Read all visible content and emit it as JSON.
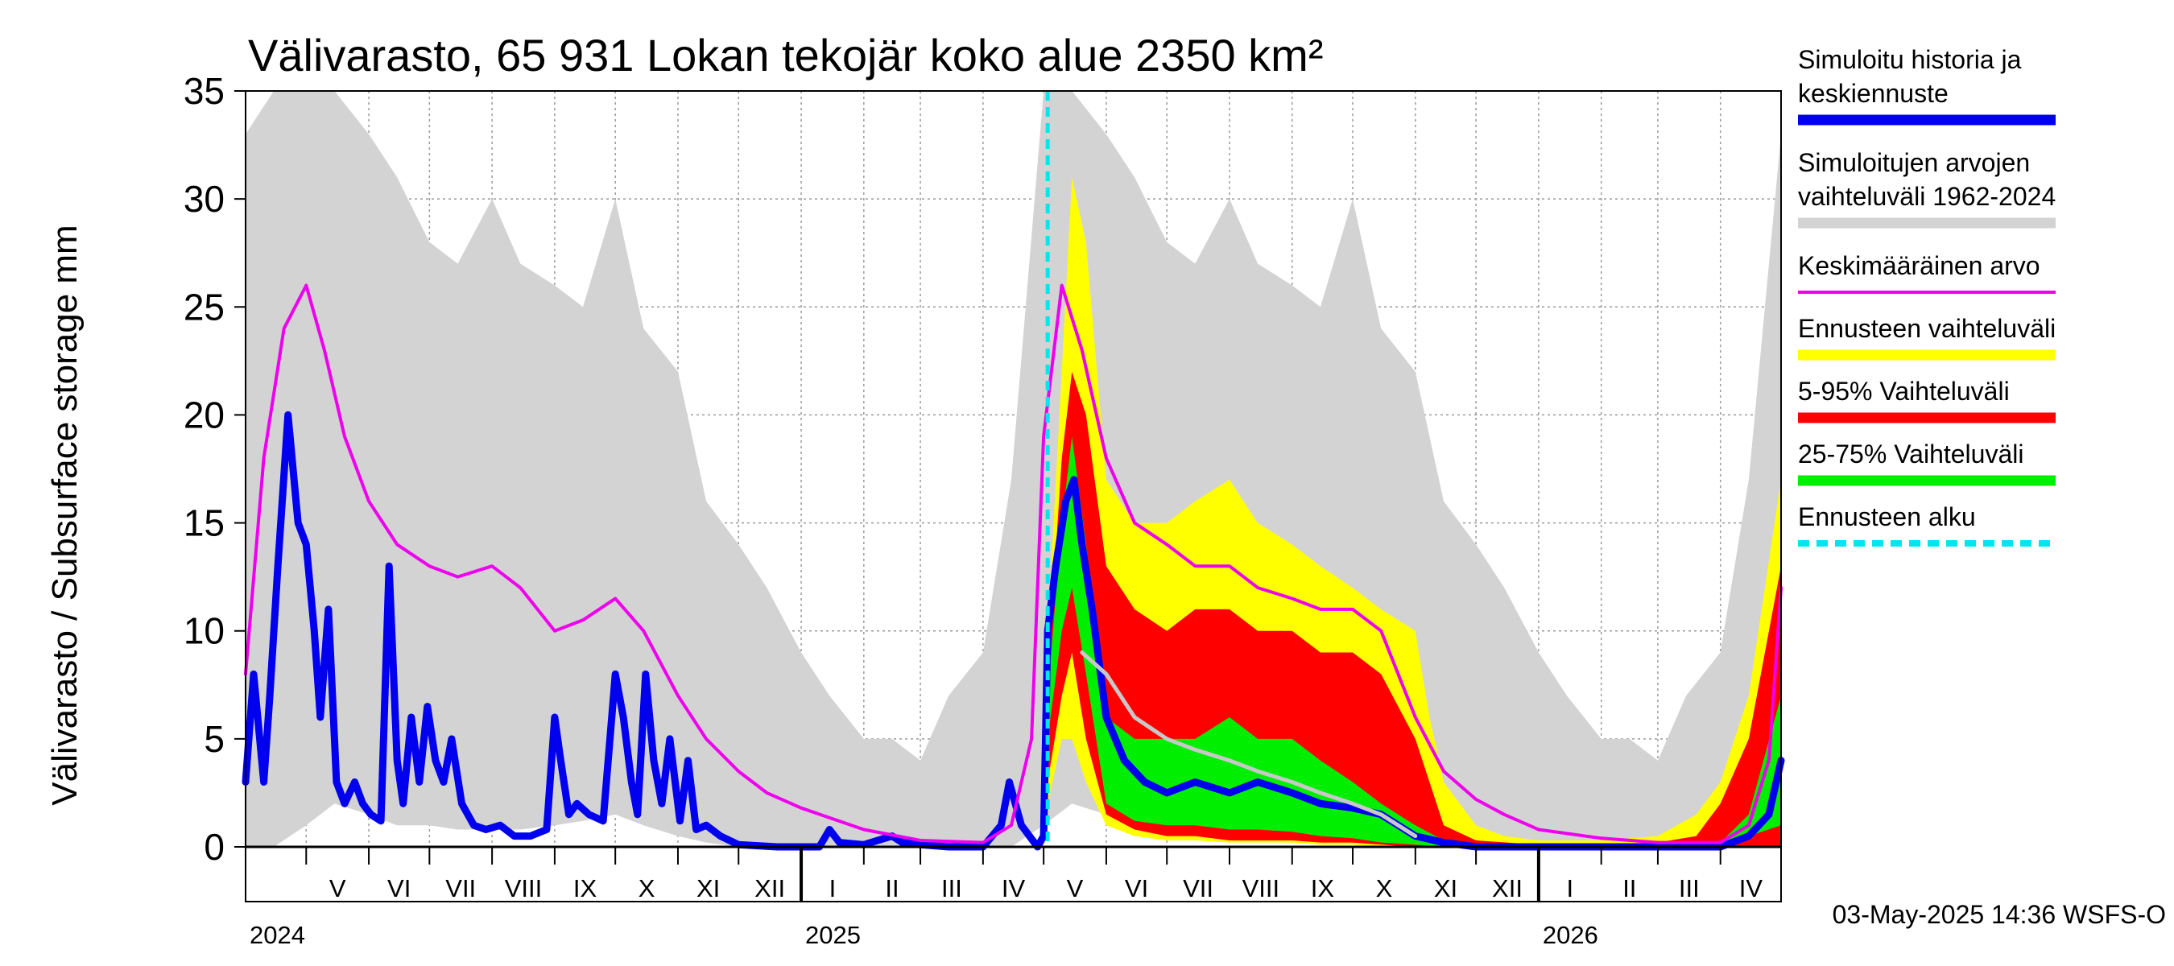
{
  "chart_data": {
    "type": "area",
    "title": "Välivarasto, 65 931 Lokan tekojär koko alue 2350 km²",
    "ylabel": "Välivarasto / Subsurface storage  mm",
    "ylim": [
      0,
      35
    ],
    "yticks": [
      "0",
      "5",
      "10",
      "15",
      "20",
      "25",
      "30",
      "35"
    ],
    "grid": true,
    "legend_position": "right",
    "x_range": [
      "2024-04-01",
      "2026-05-01"
    ],
    "month_ticks": [
      {
        "label": "V",
        "date": "2024-05-01"
      },
      {
        "label": "VI",
        "date": "2024-06-01"
      },
      {
        "label": "VII",
        "date": "2024-07-01"
      },
      {
        "label": "VIII",
        "date": "2024-08-01"
      },
      {
        "label": "IX",
        "date": "2024-09-01"
      },
      {
        "label": "X",
        "date": "2024-10-01"
      },
      {
        "label": "XI",
        "date": "2024-11-01"
      },
      {
        "label": "XII",
        "date": "2024-12-01"
      },
      {
        "label": "I",
        "date": "2025-01-01"
      },
      {
        "label": "II",
        "date": "2025-02-01"
      },
      {
        "label": "III",
        "date": "2025-03-01"
      },
      {
        "label": "IV",
        "date": "2025-04-01"
      },
      {
        "label": "V",
        "date": "2025-05-01"
      },
      {
        "label": "VI",
        "date": "2025-06-01"
      },
      {
        "label": "VII",
        "date": "2025-07-01"
      },
      {
        "label": "VIII",
        "date": "2025-08-01"
      },
      {
        "label": "IX",
        "date": "2025-09-01"
      },
      {
        "label": "X",
        "date": "2025-10-01"
      },
      {
        "label": "XI",
        "date": "2025-11-01"
      },
      {
        "label": "XII",
        "date": "2025-12-01"
      },
      {
        "label": "I",
        "date": "2026-01-01"
      },
      {
        "label": "II",
        "date": "2026-02-01"
      },
      {
        "label": "III",
        "date": "2026-03-01"
      },
      {
        "label": "IV",
        "date": "2026-04-01"
      }
    ],
    "year_labels": [
      {
        "label": "2024",
        "date": "2024-04-01"
      },
      {
        "label": "2025",
        "date": "2025-01-01"
      },
      {
        "label": "2026",
        "date": "2026-01-01"
      }
    ],
    "forecast_start": "2025-05-03",
    "colors": {
      "hist_range": "#d3d3d3",
      "forecast_range": "#ffff00",
      "p5_95": "#ff0000",
      "p25_75": "#00ee00",
      "history": "#0000ee",
      "mean": "#ee00ee",
      "median": "#c8c8c8",
      "forecast_start": "#00e5ee"
    },
    "series": [
      {
        "name": "Simuloitujen arvojen vaihteluväli 1962-2024",
        "kind": "band",
        "color": "#d3d3d3",
        "x": [
          "2024-04-01",
          "2024-04-15",
          "2024-05-01",
          "2024-05-15",
          "2024-06-01",
          "2024-06-15",
          "2024-07-01",
          "2024-07-15",
          "2024-08-01",
          "2024-08-15",
          "2024-09-01",
          "2024-09-15",
          "2024-10-01",
          "2024-10-15",
          "2024-11-01",
          "2024-11-15",
          "2024-12-01",
          "2024-12-15",
          "2025-01-01",
          "2025-01-15",
          "2025-02-01",
          "2025-02-15",
          "2025-03-01",
          "2025-03-15",
          "2025-04-01",
          "2025-04-15",
          "2025-05-01",
          "2025-05-15",
          "2025-06-01",
          "2025-06-15",
          "2025-07-01",
          "2025-07-15",
          "2025-08-01",
          "2025-08-15",
          "2025-09-01",
          "2025-09-15",
          "2025-10-01",
          "2025-10-15",
          "2025-11-01",
          "2025-11-15",
          "2025-12-01",
          "2025-12-15",
          "2026-01-01",
          "2026-01-15",
          "2026-02-01",
          "2026-02-15",
          "2026-03-01",
          "2026-03-15",
          "2026-04-01",
          "2026-04-15",
          "2026-05-01"
        ],
        "low": [
          0,
          0,
          1,
          2,
          1.5,
          1,
          1,
          0.8,
          0.8,
          0.8,
          1,
          1.2,
          1.5,
          1,
          0.5,
          0.2,
          0,
          0,
          0,
          0,
          0,
          0,
          0,
          0,
          0,
          0,
          1,
          2,
          1.5,
          1,
          1,
          0.8,
          0.8,
          0.8,
          1,
          1.2,
          1.5,
          1,
          0.5,
          0.2,
          0,
          0,
          0,
          0,
          0,
          0,
          0,
          0,
          0,
          0,
          0
        ],
        "high": [
          33,
          35,
          35,
          35,
          33,
          31,
          28,
          27,
          30,
          27,
          26,
          25,
          30,
          24,
          22,
          16,
          14,
          12,
          9,
          7,
          5,
          5,
          4,
          7,
          9,
          17,
          35,
          35,
          33,
          31,
          28,
          27,
          30,
          27,
          26,
          25,
          30,
          24,
          22,
          16,
          14,
          12,
          9,
          7,
          5,
          5,
          4,
          7,
          9,
          17,
          33
        ]
      },
      {
        "name": "Ennusteen vaihteluväli",
        "kind": "band",
        "color": "#ffff00",
        "x": [
          "2025-05-03",
          "2025-05-10",
          "2025-05-15",
          "2025-05-22",
          "2025-06-01",
          "2025-06-15",
          "2025-07-01",
          "2025-07-15",
          "2025-08-01",
          "2025-08-15",
          "2025-09-01",
          "2025-09-15",
          "2025-10-01",
          "2025-10-15",
          "2025-11-01",
          "2025-11-08",
          "2025-11-15",
          "2025-12-01",
          "2025-12-15",
          "2026-01-01",
          "2026-02-01",
          "2026-03-01",
          "2026-03-20",
          "2026-04-01",
          "2026-04-15",
          "2026-05-01"
        ],
        "low": [
          2,
          5,
          5,
          3,
          1,
          0.5,
          0.3,
          0.3,
          0.2,
          0.2,
          0.2,
          0.1,
          0.1,
          0,
          0,
          0,
          0,
          0,
          0,
          0,
          0,
          0,
          0,
          0,
          0,
          0
        ],
        "high": [
          10,
          22,
          31,
          28,
          17,
          15,
          15,
          16,
          17,
          15,
          14,
          13,
          12,
          11,
          10,
          6,
          3,
          1,
          0.5,
          0.3,
          0.3,
          0.5,
          1.5,
          3,
          7,
          17
        ]
      },
      {
        "name": "5-95% Vaihteluväli",
        "kind": "band",
        "color": "#ff0000",
        "x": [
          "2025-05-03",
          "2025-05-10",
          "2025-05-15",
          "2025-05-22",
          "2025-06-01",
          "2025-06-15",
          "2025-07-01",
          "2025-07-15",
          "2025-08-01",
          "2025-08-15",
          "2025-09-01",
          "2025-09-15",
          "2025-10-01",
          "2025-10-15",
          "2025-11-01",
          "2025-11-08",
          "2025-11-15",
          "2025-12-01",
          "2026-01-01",
          "2026-02-01",
          "2026-03-01",
          "2026-03-20",
          "2026-04-01",
          "2026-04-15",
          "2026-05-01"
        ],
        "low": [
          3,
          7,
          9,
          5,
          1.5,
          0.8,
          0.5,
          0.5,
          0.3,
          0.3,
          0.3,
          0.2,
          0.2,
          0.1,
          0,
          0,
          0,
          0,
          0,
          0,
          0,
          0,
          0,
          0,
          0
        ],
        "high": [
          8,
          18,
          22,
          20,
          13,
          11,
          10,
          11,
          11,
          10,
          10,
          9,
          9,
          8,
          5,
          3,
          1,
          0.3,
          0.1,
          0.1,
          0.2,
          0.5,
          2,
          5,
          13
        ]
      },
      {
        "name": "25-75% Vaihteluväli",
        "kind": "band",
        "color": "#00ee00",
        "x": [
          "2025-05-03",
          "2025-05-10",
          "2025-05-15",
          "2025-05-22",
          "2025-06-01",
          "2025-06-15",
          "2025-07-01",
          "2025-07-15",
          "2025-08-01",
          "2025-08-15",
          "2025-09-01",
          "2025-09-15",
          "2025-10-01",
          "2025-10-15",
          "2025-11-01",
          "2025-11-15",
          "2025-12-01",
          "2026-01-01",
          "2026-03-01",
          "2026-04-01",
          "2026-04-15",
          "2026-05-01"
        ],
        "low": [
          5,
          10,
          12,
          8,
          2,
          1.2,
          1,
          1,
          0.8,
          0.8,
          0.7,
          0.5,
          0.4,
          0.2,
          0.1,
          0,
          0,
          0,
          0,
          0,
          0.5,
          1
        ],
        "high": [
          7,
          15,
          19,
          14,
          6,
          5,
          5,
          5,
          6,
          5,
          5,
          4,
          3,
          2,
          1,
          0.3,
          0.1,
          0,
          0,
          0.2,
          1.5,
          7
        ]
      },
      {
        "name": "Simuloitu historia ja keskiennuste",
        "kind": "line",
        "color": "#0000ee",
        "x": [
          "2024-04-01",
          "2024-04-05",
          "2024-04-10",
          "2024-04-13",
          "2024-04-17",
          "2024-04-22",
          "2024-04-27",
          "2024-05-01",
          "2024-05-05",
          "2024-05-08",
          "2024-05-12",
          "2024-05-16",
          "2024-05-20",
          "2024-05-25",
          "2024-05-29",
          "2024-06-02",
          "2024-06-07",
          "2024-06-11",
          "2024-06-15",
          "2024-06-18",
          "2024-06-22",
          "2024-06-26",
          "2024-06-30",
          "2024-07-04",
          "2024-07-08",
          "2024-07-12",
          "2024-07-17",
          "2024-07-23",
          "2024-07-29",
          "2024-08-05",
          "2024-08-12",
          "2024-08-20",
          "2024-08-28",
          "2024-09-01",
          "2024-09-04",
          "2024-09-08",
          "2024-09-12",
          "2024-09-18",
          "2024-09-25",
          "2024-10-01",
          "2024-10-05",
          "2024-10-09",
          "2024-10-12",
          "2024-10-16",
          "2024-10-20",
          "2024-10-24",
          "2024-10-28",
          "2024-11-02",
          "2024-11-06",
          "2024-11-10",
          "2024-11-15",
          "2024-11-22",
          "2024-12-01",
          "2024-12-20",
          "2025-01-10",
          "2025-01-15",
          "2025-01-20",
          "2025-02-01",
          "2025-02-15",
          "2025-02-20",
          "2025-03-01",
          "2025-03-15",
          "2025-04-01",
          "2025-04-10",
          "2025-04-14",
          "2025-04-20",
          "2025-04-28",
          "2025-05-01",
          "2025-05-03",
          "2025-05-07",
          "2025-05-12",
          "2025-05-16",
          "2025-05-20",
          "2025-05-25",
          "2025-06-01",
          "2025-06-10",
          "2025-06-20",
          "2025-07-01",
          "2025-07-15",
          "2025-08-01",
          "2025-08-15",
          "2025-09-01",
          "2025-09-15",
          "2025-10-01",
          "2025-10-15",
          "2025-11-01",
          "2025-11-15",
          "2025-12-01",
          "2026-01-01",
          "2026-02-01",
          "2026-03-01",
          "2026-04-01",
          "2026-04-15",
          "2026-04-25",
          "2026-05-01"
        ],
        "values": [
          3,
          8,
          3,
          7,
          13,
          20,
          15,
          14,
          10,
          6,
          11,
          3,
          2,
          3,
          2,
          1.5,
          1.2,
          13,
          4,
          2,
          6,
          3,
          6.5,
          4,
          3,
          5,
          2,
          1,
          0.8,
          1,
          0.5,
          0.5,
          0.8,
          6,
          4,
          1.5,
          2,
          1.5,
          1.2,
          8,
          6,
          3,
          1.5,
          8,
          4,
          2,
          5,
          1.2,
          4,
          0.8,
          1,
          0.5,
          0.1,
          0,
          0,
          0.8,
          0.2,
          0.1,
          0.5,
          0.2,
          0.1,
          0,
          0,
          1,
          3,
          1,
          0,
          0.5,
          10,
          13,
          16,
          17,
          14,
          11,
          6,
          4,
          3,
          2.5,
          3,
          2.5,
          3,
          2.5,
          2,
          1.8,
          1.5,
          0.5,
          0.2,
          0,
          0,
          0,
          0,
          0,
          0.5,
          1.5,
          4
        ]
      },
      {
        "name": "Keskimääräinen arvo",
        "kind": "line",
        "color": "#ee00ee",
        "x": [
          "2024-04-01",
          "2024-04-10",
          "2024-04-20",
          "2024-05-01",
          "2024-05-10",
          "2024-05-20",
          "2024-06-01",
          "2024-06-15",
          "2024-07-01",
          "2024-07-15",
          "2024-08-01",
          "2024-08-15",
          "2024-09-01",
          "2024-09-15",
          "2024-10-01",
          "2024-10-15",
          "2024-11-01",
          "2024-11-15",
          "2024-12-01",
          "2024-12-15",
          "2025-01-01",
          "2025-02-01",
          "2025-03-01",
          "2025-04-01",
          "2025-04-15",
          "2025-04-25",
          "2025-05-01",
          "2025-05-10",
          "2025-05-20",
          "2025-06-01",
          "2025-06-15",
          "2025-07-01",
          "2025-07-15",
          "2025-08-01",
          "2025-08-15",
          "2025-09-01",
          "2025-09-15",
          "2025-10-01",
          "2025-10-15",
          "2025-11-01",
          "2025-11-15",
          "2025-12-01",
          "2025-12-15",
          "2026-01-01",
          "2026-02-01",
          "2026-03-01",
          "2026-04-01",
          "2026-04-15",
          "2026-04-25",
          "2026-05-01"
        ],
        "values": [
          8,
          18,
          24,
          26,
          23,
          19,
          16,
          14,
          13,
          12.5,
          13,
          12,
          10,
          10.5,
          11.5,
          10,
          7,
          5,
          3.5,
          2.5,
          1.8,
          0.8,
          0.3,
          0.2,
          1,
          5,
          19,
          26,
          23,
          18,
          15,
          14,
          13,
          13,
          12,
          11.5,
          11,
          11,
          10,
          6,
          3.5,
          2.2,
          1.5,
          0.8,
          0.4,
          0.2,
          0.2,
          1,
          4,
          12
        ]
      },
      {
        "name": "Median forecast",
        "kind": "line",
        "color": "#c8c8c8",
        "x": [
          "2025-05-20",
          "2025-06-01",
          "2025-06-15",
          "2025-07-01",
          "2025-07-15",
          "2025-08-01",
          "2025-08-15",
          "2025-09-01",
          "2025-09-15",
          "2025-10-01",
          "2025-10-15",
          "2025-11-01"
        ],
        "values": [
          9,
          8,
          6,
          5,
          4.5,
          4,
          3.5,
          3,
          2.5,
          2,
          1.5,
          0.5
        ]
      },
      {
        "name": "Ennusteen alku",
        "kind": "vline",
        "color": "#00e5ee",
        "x": "2025-05-03"
      }
    ]
  },
  "legend": [
    {
      "lines": [
        "Simuloitu historia ja",
        "keskiennuste"
      ],
      "color": "#0000ee",
      "style": "solid"
    },
    {
      "lines": [
        "Simuloitujen arvojen",
        "vaihteluväli 1962-2024"
      ],
      "color": "#d3d3d3",
      "style": "solid"
    },
    {
      "lines": [
        "Keskimääräinen arvo"
      ],
      "color": "#ee00ee",
      "style": "thin"
    },
    {
      "lines": [
        "Ennusteen vaihteluväli"
      ],
      "color": "#ffff00",
      "style": "solid"
    },
    {
      "lines": [
        "5-95% Vaihteluväli"
      ],
      "color": "#ff0000",
      "style": "solid"
    },
    {
      "lines": [
        "25-75% Vaihteluväli"
      ],
      "color": "#00ee00",
      "style": "solid"
    },
    {
      "lines": [
        "Ennusteen alku"
      ],
      "color": "#00e5ee",
      "style": "dashed"
    }
  ],
  "footer": "03-May-2025 14:36 WSFS-O"
}
